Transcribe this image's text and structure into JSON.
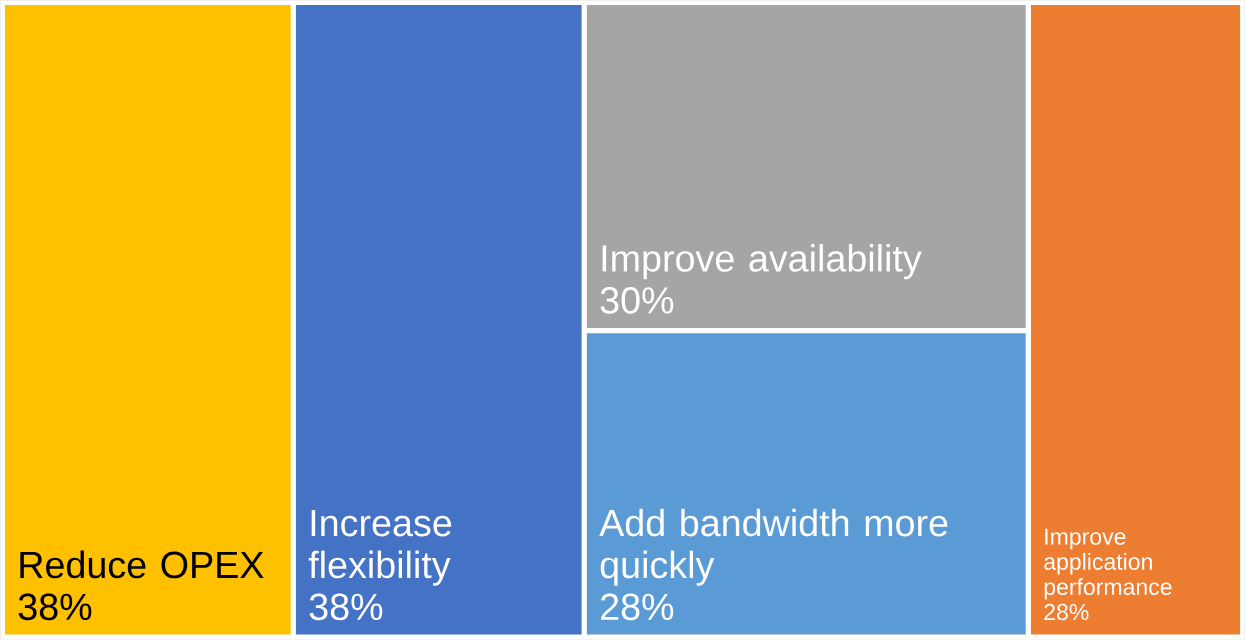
{
  "chart_data": {
    "type": "other",
    "categories": [
      "Reduce OPEX",
      "Increase flexibility",
      "Improve availability",
      "Add bandwidth more quickly",
      "Improve application performance"
    ],
    "values": [
      38,
      38,
      30,
      28,
      28
    ],
    "value_labels": [
      "38%",
      "38%",
      "30%",
      "28%",
      "28%"
    ],
    "colors": [
      "#ffc000",
      "#4472c4",
      "#a5a5a5",
      "#5b9bd5",
      "#ed7d31"
    ]
  }
}
